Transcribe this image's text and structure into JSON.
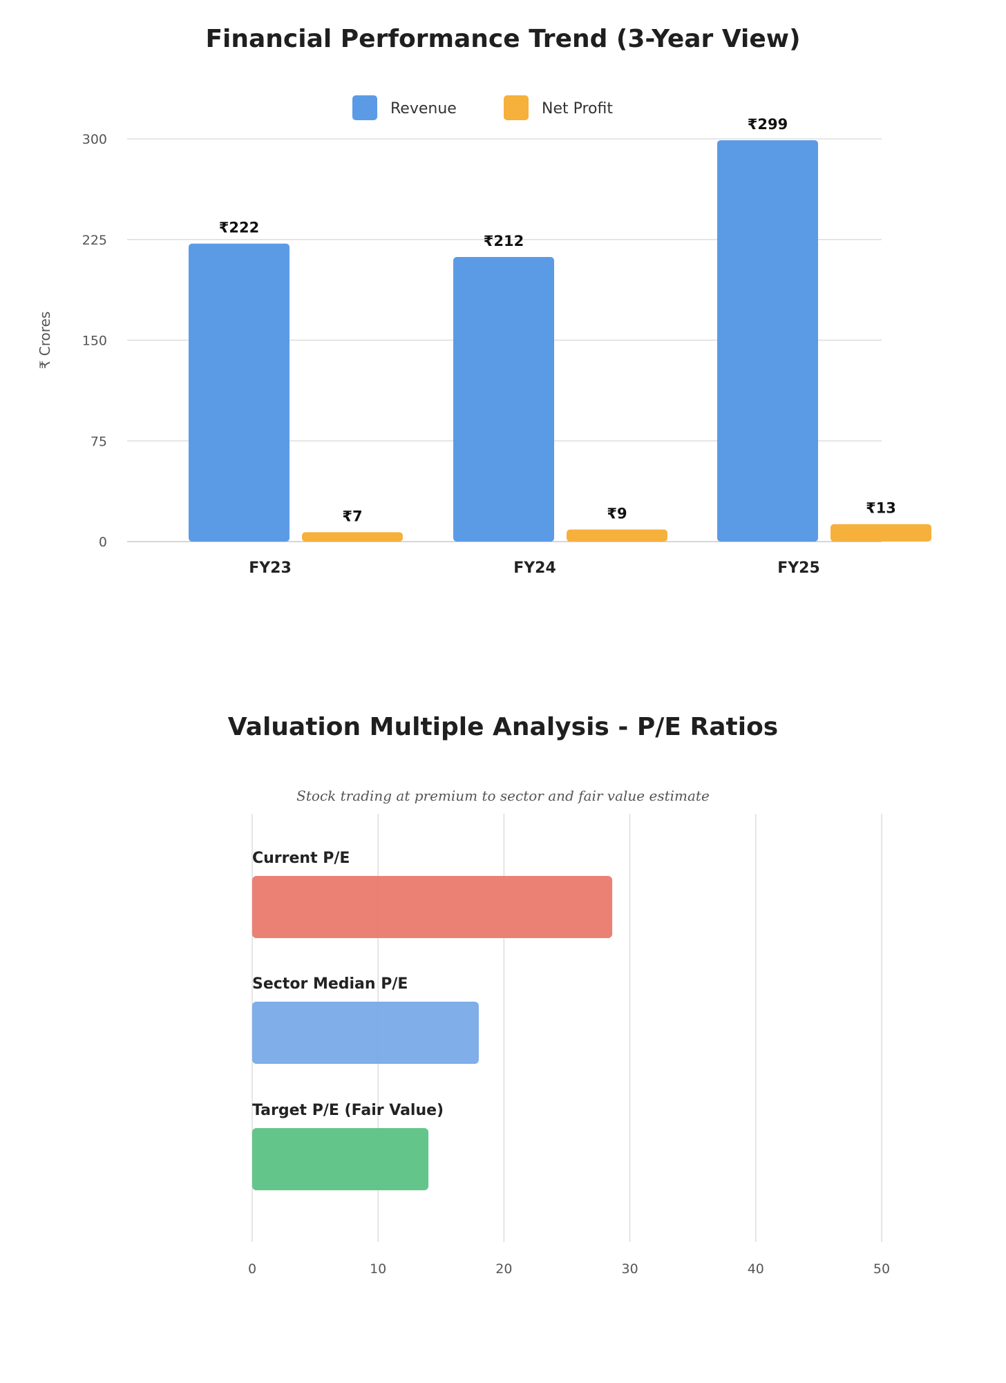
{
  "chart_data": [
    {
      "type": "bar",
      "title": "Financial Performance Trend (3-Year View)",
      "categories": [
        "FY23",
        "FY24",
        "FY25"
      ],
      "series": [
        {
          "name": "Revenue",
          "values": [
            222,
            212,
            299
          ],
          "color": "#5b9be6",
          "labels": [
            "₹222",
            "₹212",
            "₹299"
          ]
        },
        {
          "name": "Net Profit",
          "values": [
            7,
            9,
            13
          ],
          "color": "#f6b03c",
          "labels": [
            "₹7",
            "₹9",
            "₹13"
          ]
        }
      ],
      "ylabel": "₹ Crores",
      "ylim": [
        0,
        300
      ],
      "yticks": [
        "0",
        "75",
        "150",
        "225",
        "300"
      ],
      "grid": true,
      "legend": "top-center"
    },
    {
      "type": "bar",
      "orientation": "horizontal",
      "title": "Valuation Multiple Analysis - P/E Ratios",
      "subtitle": "Stock trading at premium to sector and fair value estimate",
      "categories": [
        "Current P/E",
        "Sector Median P/E",
        "Target P/E (Fair Value)"
      ],
      "values": [
        28.6,
        18,
        14
      ],
      "colors": [
        "#ea7a6e",
        "#78aae8",
        "#5cc285"
      ],
      "xlim": [
        0,
        50
      ],
      "xticks": [
        "0",
        "10",
        "20",
        "30",
        "40",
        "50"
      ],
      "grid": true
    }
  ]
}
